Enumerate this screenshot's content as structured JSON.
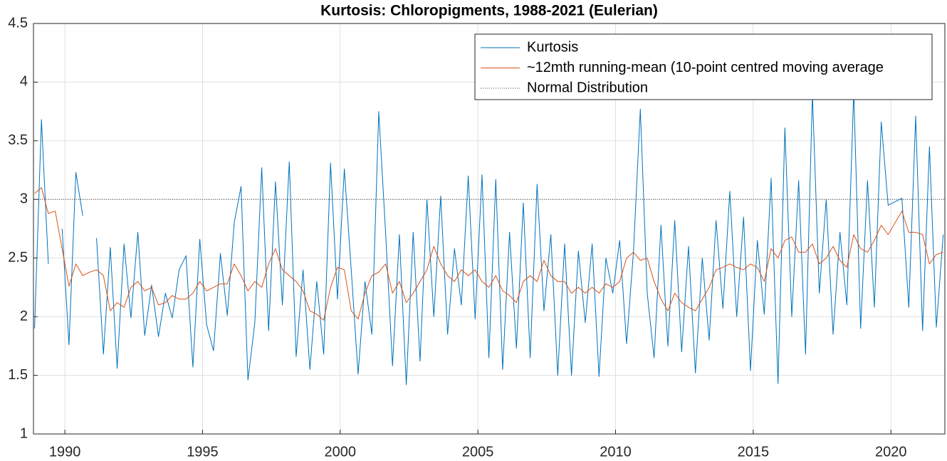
{
  "chart_data": {
    "type": "line",
    "title": "Kurtosis: Chloropigments, 1988-2021 (Eulerian)",
    "x": [
      1988.9,
      1989.15,
      1989.4,
      1989.65,
      1989.9,
      1990.15,
      1990.4,
      1990.65,
      1990.9,
      1991.15,
      1991.4,
      1991.65,
      1991.9,
      1992.15,
      1992.4,
      1992.65,
      1992.9,
      1993.15,
      1993.4,
      1993.65,
      1993.9,
      1994.15,
      1994.4,
      1994.65,
      1994.9,
      1995.15,
      1995.4,
      1995.65,
      1995.9,
      1996.15,
      1996.4,
      1996.65,
      1996.9,
      1997.15,
      1997.4,
      1997.65,
      1997.9,
      1998.15,
      1998.4,
      1998.65,
      1998.9,
      1999.15,
      1999.4,
      1999.65,
      1999.9,
      2000.15,
      2000.4,
      2000.65,
      2000.9,
      2001.15,
      2001.4,
      2001.65,
      2001.9,
      2002.15,
      2002.4,
      2002.65,
      2002.9,
      2003.15,
      2003.4,
      2003.65,
      2003.9,
      2004.15,
      2004.4,
      2004.65,
      2004.9,
      2005.15,
      2005.4,
      2005.65,
      2005.9,
      2006.15,
      2006.4,
      2006.65,
      2006.9,
      2007.15,
      2007.4,
      2007.65,
      2007.9,
      2008.15,
      2008.4,
      2008.65,
      2008.9,
      2009.15,
      2009.4,
      2009.65,
      2009.9,
      2010.15,
      2010.4,
      2010.65,
      2010.9,
      2011.15,
      2011.4,
      2011.65,
      2011.9,
      2012.15,
      2012.4,
      2012.65,
      2012.9,
      2013.15,
      2013.4,
      2013.65,
      2013.9,
      2014.15,
      2014.4,
      2014.65,
      2014.9,
      2015.15,
      2015.4,
      2015.65,
      2015.9,
      2016.15,
      2016.4,
      2016.65,
      2016.9,
      2017.15,
      2017.4,
      2017.65,
      2017.9,
      2018.15,
      2018.4,
      2018.65,
      2018.9,
      2019.15,
      2019.4,
      2019.65,
      2019.9,
      2020.15,
      2020.4,
      2020.65,
      2020.9,
      2021.15,
      2021.4,
      2021.65,
      2021.9
    ],
    "series": [
      {
        "name": "Kurtosis",
        "color": "#0072bd",
        "values": [
          1.9,
          3.68,
          2.45,
          null,
          2.75,
          1.76,
          3.23,
          2.86,
          null,
          2.67,
          1.68,
          2.59,
          1.56,
          2.62,
          1.99,
          2.72,
          1.84,
          2.27,
          1.83,
          2.2,
          1.99,
          2.4,
          2.52,
          1.57,
          2.66,
          1.93,
          1.71,
          2.54,
          2.01,
          2.8,
          3.11,
          1.46,
          1.95,
          3.27,
          1.88,
          3.15,
          2.1,
          3.32,
          1.66,
          2.4,
          1.55,
          2.3,
          1.68,
          3.31,
          2.15,
          3.26,
          2.4,
          1.51,
          2.3,
          1.85,
          3.75,
          2.71,
          1.58,
          2.7,
          1.42,
          2.72,
          1.62,
          3.0,
          2.0,
          3.03,
          1.85,
          2.58,
          2.1,
          3.2,
          1.98,
          3.21,
          1.65,
          3.17,
          1.55,
          2.72,
          1.73,
          2.97,
          1.65,
          3.13,
          2.05,
          2.7,
          1.5,
          2.62,
          1.5,
          2.56,
          1.95,
          2.62,
          1.49,
          2.5,
          2.2,
          2.65,
          1.77,
          2.55,
          3.77,
          2.2,
          1.65,
          2.78,
          1.75,
          2.82,
          1.7,
          2.6,
          1.52,
          2.5,
          1.8,
          2.82,
          2.07,
          3.07,
          2.0,
          2.85,
          1.54,
          2.65,
          2.02,
          3.18,
          1.43,
          3.61,
          2.0,
          3.16,
          1.68,
          3.9,
          2.2,
          3.0,
          1.85,
          2.72,
          2.1,
          3.92,
          1.9,
          3.16,
          2.08,
          3.66,
          2.95,
          2.98,
          3.01,
          2.08,
          3.71,
          1.88,
          3.45,
          1.91,
          2.7
        ]
      },
      {
        "name": "~12mth running-mean (10-point centred moving average",
        "color": "#d95319",
        "values": [
          3.05,
          3.1,
          2.88,
          2.9,
          2.58,
          2.26,
          2.45,
          2.35,
          2.38,
          2.4,
          2.35,
          2.05,
          2.12,
          2.08,
          2.25,
          2.3,
          2.22,
          2.25,
          2.1,
          2.12,
          2.18,
          2.15,
          2.15,
          2.2,
          2.3,
          2.22,
          2.25,
          2.28,
          2.28,
          2.45,
          2.35,
          2.22,
          2.3,
          2.25,
          2.45,
          2.58,
          2.4,
          2.35,
          2.3,
          2.22,
          2.05,
          2.02,
          1.97,
          2.25,
          2.42,
          2.4,
          2.05,
          1.98,
          2.2,
          2.35,
          2.38,
          2.45,
          2.2,
          2.3,
          2.12,
          2.2,
          2.3,
          2.4,
          2.6,
          2.45,
          2.35,
          2.3,
          2.4,
          2.35,
          2.4,
          2.3,
          2.25,
          2.35,
          2.22,
          2.18,
          2.12,
          2.3,
          2.35,
          2.3,
          2.48,
          2.35,
          2.3,
          2.3,
          2.2,
          2.25,
          2.2,
          2.25,
          2.2,
          2.28,
          2.25,
          2.3,
          2.5,
          2.55,
          2.48,
          2.5,
          2.3,
          2.15,
          2.05,
          2.2,
          2.12,
          2.08,
          2.05,
          2.15,
          2.25,
          2.4,
          2.42,
          2.45,
          2.42,
          2.4,
          2.45,
          2.42,
          2.3,
          2.58,
          2.5,
          2.65,
          2.68,
          2.55,
          2.55,
          2.62,
          2.45,
          2.5,
          2.6,
          2.48,
          2.42,
          2.7,
          2.58,
          2.55,
          2.65,
          2.78,
          2.7,
          2.8,
          2.9,
          2.72,
          2.72,
          2.7,
          2.45,
          2.53,
          2.55
        ]
      }
    ],
    "reference_line": {
      "name": "Normal Distribution",
      "value": 3,
      "color": "#404040"
    },
    "xlim": [
      1988.86,
      2021.96
    ],
    "ylim": [
      1,
      4.5
    ],
    "xticks": [
      1990,
      1995,
      2000,
      2005,
      2010,
      2015,
      2020
    ],
    "yticks": [
      1,
      1.5,
      2,
      2.5,
      3,
      3.5,
      4,
      4.5
    ],
    "grid": true,
    "legend": "northeast"
  }
}
